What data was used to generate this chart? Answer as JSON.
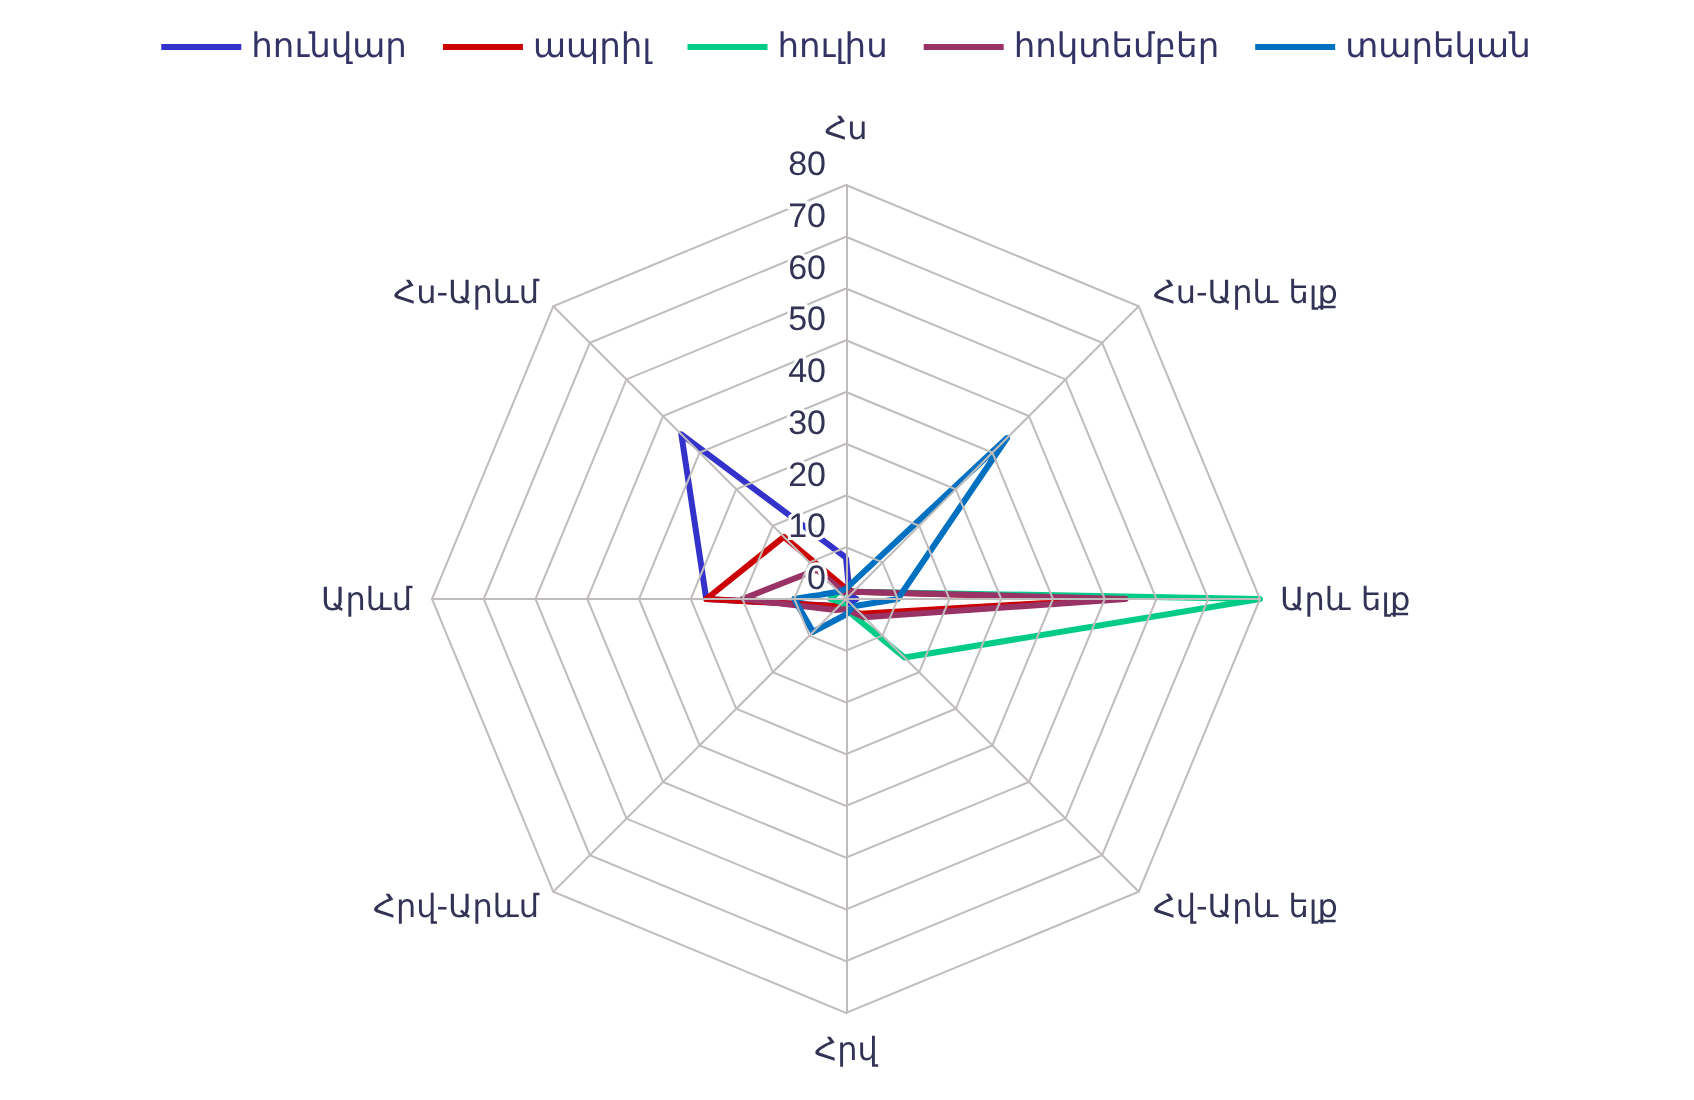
{
  "chart_data": {
    "type": "radar",
    "categories": [
      "Հս",
      "Հս-Արև ելք",
      "Արև ելք",
      "Հվ-Արև ելք",
      "Հրվ",
      "Հրվ-Արևմ",
      "Արևմ",
      "Հս-Արևմ"
    ],
    "ylim": [
      0,
      80
    ],
    "yticks": [
      0,
      10,
      20,
      30,
      40,
      50,
      60,
      70,
      80
    ],
    "grid": true,
    "legend": "top",
    "marker": "none",
    "line_style": "solid",
    "series": [
      {
        "name": "հունվար",
        "color": "#3333cc",
        "values": [
          8,
          1,
          2,
          1,
          1,
          2,
          27,
          45
        ]
      },
      {
        "name": "ապրիլ",
        "color": "#cc0000",
        "values": [
          2,
          2,
          52,
          4,
          2,
          2,
          27,
          17
        ]
      },
      {
        "name": "հուլիս",
        "color": "#00cc88",
        "values": [
          1,
          2,
          80,
          16,
          2,
          1,
          3,
          2
        ]
      },
      {
        "name": "հոկտեմբեր",
        "color": "#993366",
        "values": [
          1,
          2,
          54,
          5,
          2,
          3,
          20,
          8
        ]
      },
      {
        "name": "տարեկան",
        "color": "#0070c0",
        "values": [
          2,
          44,
          10,
          2,
          3,
          9,
          10,
          2
        ]
      }
    ]
  }
}
